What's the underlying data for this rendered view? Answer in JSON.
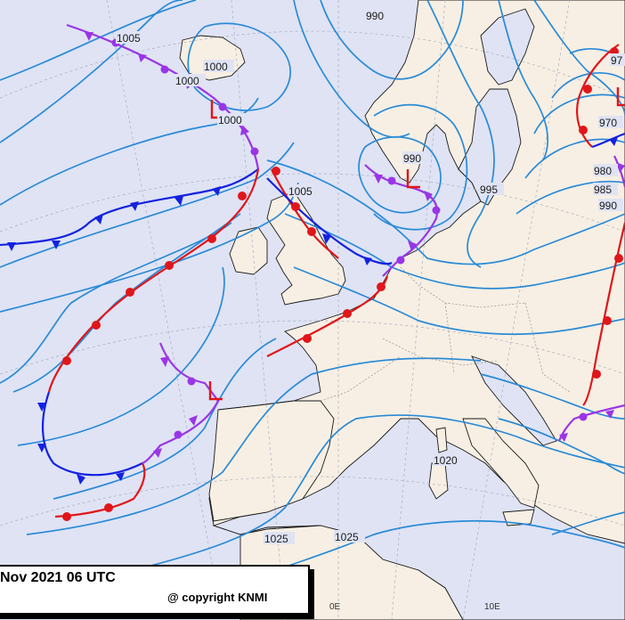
{
  "caption": {
    "date": "Nov 2021 06 UTC",
    "copyright": "@ copyright KNMI"
  },
  "isobar_labels": {
    "i990_top": "990",
    "i1005_nw": "1005",
    "i1000_iceland": "1000",
    "i1000_west": "1000",
    "i1000_scot": "1000",
    "i1005_scot": "1005",
    "i990_norway": "990",
    "i995_baltic": "995",
    "i970_east": "970",
    "i980_east": "980",
    "i985_east": "985",
    "i990_east": "990",
    "i1020_med": "1020",
    "i1025_spain": "1025",
    "i1025_med": "1025",
    "i97_corner": "97"
  },
  "pressure_centers": {
    "low_iceland": "L",
    "low_norway": "L",
    "low_biscay": "L",
    "low_east": "L"
  },
  "longitude_labels": {
    "zero": "0E",
    "ten": "10E"
  },
  "colors": {
    "sea": "#dfe3f4",
    "land": "#f7efe3",
    "isobar": "#2a8ad6",
    "cold_front": "#1422e0",
    "warm_front": "#e0161a",
    "occluded_front": "#9a35e6"
  }
}
